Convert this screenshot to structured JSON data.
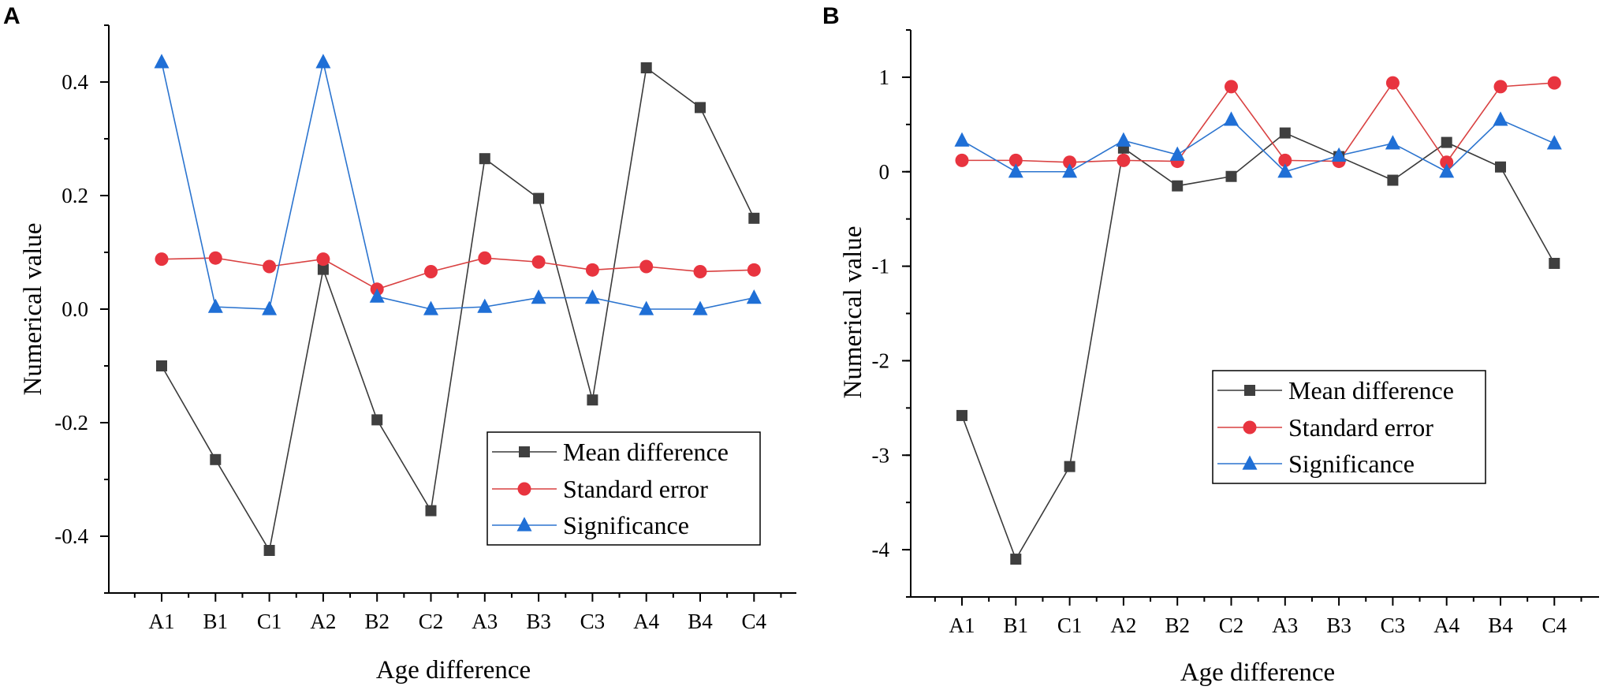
{
  "colors": {
    "mean_difference": "#3f3f3f",
    "standard_error": "#e8343f",
    "significance": "#1f6fd6",
    "mean_difference_line": "#3a3a3a",
    "standard_error_line": "#d94141",
    "significance_line": "#2b74cf"
  },
  "chart_data": [
    {
      "panel": "A",
      "type": "line",
      "xlabel": "Age difference",
      "ylabel": "Numerical value",
      "categories": [
        "A1",
        "B1",
        "C1",
        "A2",
        "B2",
        "C2",
        "A3",
        "B3",
        "C3",
        "A4",
        "B4",
        "C4"
      ],
      "ylim": [
        -0.5,
        0.5
      ],
      "yticks": [
        -0.4,
        -0.2,
        0.0,
        0.2,
        0.4
      ],
      "ytick_labels": [
        "-0.4",
        "-0.2",
        "0.0",
        "0.2",
        "0.4"
      ],
      "legend_position": "bottom-right",
      "series": [
        {
          "name": "Mean difference",
          "marker": "square",
          "values": [
            -0.1,
            -0.265,
            -0.425,
            0.07,
            -0.195,
            -0.355,
            0.265,
            0.195,
            -0.16,
            0.425,
            0.355,
            0.16
          ]
        },
        {
          "name": "Standard error",
          "marker": "circle",
          "values": [
            0.088,
            0.09,
            0.075,
            0.088,
            0.035,
            0.066,
            0.09,
            0.083,
            0.069,
            0.075,
            0.066,
            0.069
          ]
        },
        {
          "name": "Significance",
          "marker": "triangle",
          "values": [
            0.435,
            0.004,
            0.0,
            0.435,
            0.022,
            0.0,
            0.004,
            0.02,
            0.02,
            0.0,
            0.0,
            0.02
          ]
        }
      ]
    },
    {
      "panel": "B",
      "type": "line",
      "xlabel": "Age difference",
      "ylabel": "Numerical value",
      "categories": [
        "A1",
        "B1",
        "C1",
        "A2",
        "B2",
        "C2",
        "A3",
        "B3",
        "C3",
        "A4",
        "B4",
        "C4"
      ],
      "ylim": [
        -4.5,
        1.5
      ],
      "yticks": [
        -4,
        -3,
        -2,
        -1,
        0,
        1
      ],
      "ytick_labels": [
        "-4",
        "-3",
        "-2",
        "-1",
        "0",
        "1"
      ],
      "legend_position": "center",
      "series": [
        {
          "name": "Mean difference",
          "marker": "square",
          "values": [
            -2.58,
            -4.1,
            -3.12,
            0.25,
            -0.15,
            -0.05,
            0.41,
            0.16,
            -0.09,
            0.31,
            0.05,
            -0.97
          ]
        },
        {
          "name": "Standard error",
          "marker": "circle",
          "values": [
            0.12,
            0.12,
            0.1,
            0.12,
            0.11,
            0.9,
            0.12,
            0.11,
            0.94,
            0.1,
            0.9,
            0.94
          ]
        },
        {
          "name": "Significance",
          "marker": "triangle",
          "values": [
            0.33,
            0.0,
            0.0,
            0.33,
            0.18,
            0.55,
            0.0,
            0.17,
            0.3,
            0.0,
            0.55,
            0.3
          ]
        }
      ]
    }
  ]
}
